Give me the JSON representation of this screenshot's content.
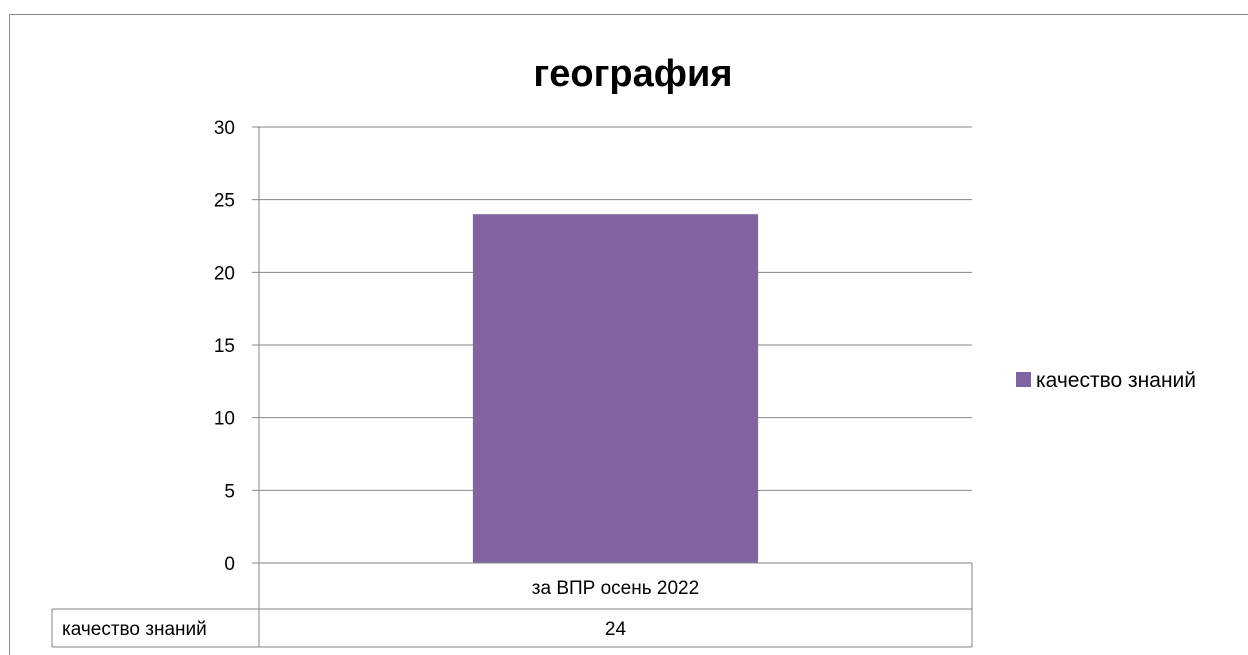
{
  "chart_data": {
    "type": "bar",
    "title": "география",
    "categories": [
      "за ВПР осень 2022"
    ],
    "series": [
      {
        "name": "качество знаний",
        "values": [
          24
        ],
        "color": "#8064A2"
      }
    ],
    "ylim": [
      0,
      30
    ],
    "yticks": [
      0,
      5,
      10,
      15,
      20,
      25,
      30
    ],
    "grid": true,
    "legend_position": "right",
    "data_table": {
      "row_label": "качество знаний",
      "values": [
        "24"
      ]
    }
  }
}
